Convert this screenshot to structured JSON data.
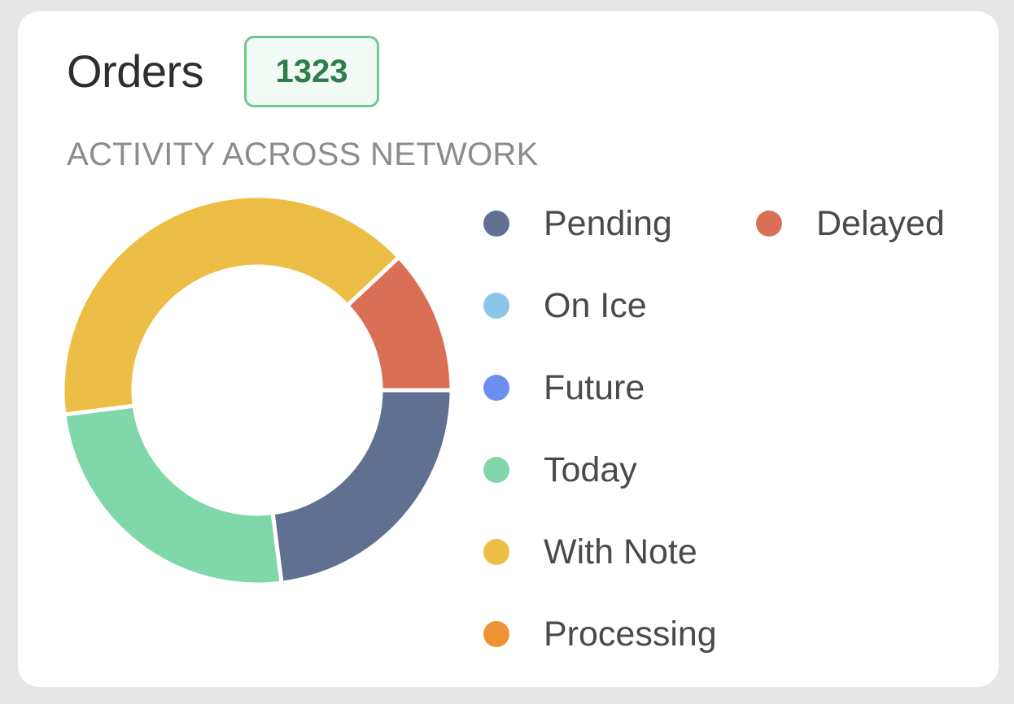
{
  "header": {
    "title": "Orders",
    "count_badge": "1323",
    "subtitle": "ACTIVITY ACROSS NETWORK"
  },
  "chart_data": {
    "type": "pie",
    "variant": "donut",
    "categories": [
      "Pending",
      "Delayed",
      "On Ice",
      "Future",
      "Today",
      "With Note",
      "Processing"
    ],
    "values": [
      23,
      12,
      0,
      0,
      25,
      40,
      0
    ],
    "colors": {
      "Pending": "#5f7090",
      "Delayed": "#d97055",
      "On Ice": "#8ac6e8",
      "Future": "#6b8ef0",
      "Today": "#80d7a9",
      "With Note": "#edbe45",
      "Processing": "#ef9233"
    },
    "legend_position": "right"
  },
  "colors": {
    "card_background": "#ffffff",
    "page_background": "#e6e6e6",
    "badge_border": "#6cc98e",
    "badge_text": "#2f7d4c"
  }
}
